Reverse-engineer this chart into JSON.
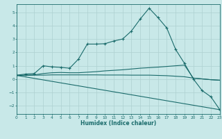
{
  "xlabel": "Humidex (Indice chaleur)",
  "background_color": "#c8e8e8",
  "grid_color": "#aed0d0",
  "line_color": "#1a6b6b",
  "xlim": [
    0,
    23
  ],
  "ylim": [
    -2.6,
    5.6
  ],
  "xticks": [
    0,
    1,
    2,
    3,
    4,
    5,
    6,
    7,
    8,
    9,
    10,
    11,
    12,
    13,
    14,
    15,
    16,
    17,
    18,
    19,
    20,
    21,
    22,
    23
  ],
  "yticks": [
    -2,
    -1,
    0,
    1,
    2,
    3,
    4,
    5
  ],
  "curve1_x": [
    0,
    1,
    2,
    3,
    4,
    5,
    6,
    7,
    8,
    9,
    10,
    11,
    12,
    13,
    14,
    15,
    16,
    17,
    18,
    19,
    20,
    21,
    22,
    23
  ],
  "curve1_y": [
    0.3,
    0.38,
    0.42,
    1.0,
    0.92,
    0.88,
    0.82,
    1.5,
    2.62,
    2.62,
    2.65,
    2.85,
    3.0,
    3.6,
    4.5,
    5.3,
    4.6,
    3.82,
    2.22,
    1.18,
    0.02,
    -0.85,
    -1.32,
    -2.28
  ],
  "curve2_x": [
    0,
    1,
    2,
    3,
    4,
    5,
    6,
    7,
    8,
    9,
    10,
    11,
    12,
    13,
    14,
    15,
    16,
    17,
    18,
    19,
    20,
    21,
    22,
    23
  ],
  "curve2_y": [
    0.28,
    0.3,
    0.32,
    0.42,
    0.48,
    0.5,
    0.48,
    0.48,
    0.52,
    0.56,
    0.62,
    0.66,
    0.7,
    0.76,
    0.82,
    0.86,
    0.9,
    0.95,
    1.0,
    1.05,
    0.08,
    0.02,
    -0.04,
    -0.08
  ],
  "curve3_x": [
    0,
    1,
    2,
    3,
    4,
    5,
    6,
    7,
    8,
    9,
    10,
    11,
    12,
    13,
    14,
    15,
    16,
    17,
    18,
    19,
    20,
    21,
    22,
    23
  ],
  "curve3_y": [
    0.28,
    0.28,
    0.3,
    0.3,
    0.32,
    0.32,
    0.32,
    0.32,
    0.32,
    0.32,
    0.31,
    0.31,
    0.31,
    0.3,
    0.3,
    0.3,
    0.28,
    0.26,
    0.22,
    0.18,
    0.08,
    0.02,
    -0.04,
    -0.08
  ],
  "curve4_x": [
    0,
    23
  ],
  "curve4_y": [
    0.28,
    -2.28
  ]
}
